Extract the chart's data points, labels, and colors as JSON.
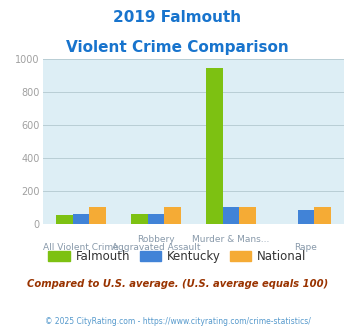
{
  "title_line1": "2019 Falmouth",
  "title_line2": "Violent Crime Comparison",
  "title_color": "#1874CD",
  "top_labels": [
    "",
    "Robbery",
    "Murder & Mans...",
    ""
  ],
  "bottom_labels": [
    "All Violent Crime",
    "Aggravated Assault",
    "",
    "Rape"
  ],
  "falmouth": [
    55,
    60,
    950,
    0
  ],
  "kentucky": [
    65,
    65,
    105,
    85
  ],
  "national": [
    105,
    105,
    105,
    105
  ],
  "falmouth_color": "#7DC112",
  "kentucky_color": "#4183D7",
  "national_color": "#F5AB35",
  "background_color": "#ddeef5",
  "ylim": [
    0,
    1000
  ],
  "yticks": [
    0,
    200,
    400,
    600,
    800,
    1000
  ],
  "ytick_color": "#a0a0a0",
  "grid_color": "#b8cdd4",
  "annotation": "Compared to U.S. average. (U.S. average equals 100)",
  "annotation_color": "#993300",
  "footer": "© 2025 CityRating.com - https://www.cityrating.com/crime-statistics/",
  "footer_color": "#5599cc",
  "xtick_color": "#8899aa",
  "bar_width": 0.22
}
